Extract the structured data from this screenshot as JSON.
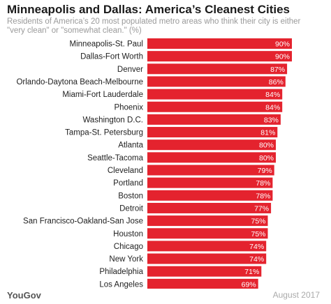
{
  "header": {
    "title": "Minneapolis and Dallas: America’s Cleanest Cities",
    "subtitle": "Residents of America’s 20 most populated metro areas who think their city is either \"very clean\" or \"somewhat clean.\" (%)"
  },
  "footer": {
    "brand": "YouGov",
    "date": "August 2017"
  },
  "colors": {
    "bar": "#E4232E",
    "label_text": "#ffffff"
  },
  "chart_data": {
    "type": "bar",
    "orientation": "horizontal",
    "title": "Minneapolis and Dallas: America’s Cleanest Cities",
    "subtitle": "Residents of America’s 20 most populated metro areas who think their city is either \"very clean\" or \"somewhat clean.\" (%)",
    "categories": [
      "Minneapolis-St. Paul",
      "Dallas-Fort Worth",
      "Denver",
      "Orlando-Daytona Beach-Melbourne",
      "Miami-Fort Lauderdale",
      "Phoenix",
      "Washington D.C.",
      "Tampa-St. Petersburg",
      "Atlanta",
      "Seattle-Tacoma",
      "Cleveland",
      "Portland",
      "Boston",
      "Detroit",
      "San Francisco-Oakland-San Jose",
      "Houston",
      "Chicago",
      "New York",
      "Philadelphia",
      "Los Angeles"
    ],
    "values": [
      90,
      90,
      87,
      86,
      84,
      84,
      83,
      81,
      80,
      80,
      79,
      78,
      78,
      77,
      75,
      75,
      74,
      74,
      71,
      69
    ],
    "value_suffix": "%",
    "xlim": [
      0,
      90
    ],
    "grid": false,
    "legend": "none"
  }
}
